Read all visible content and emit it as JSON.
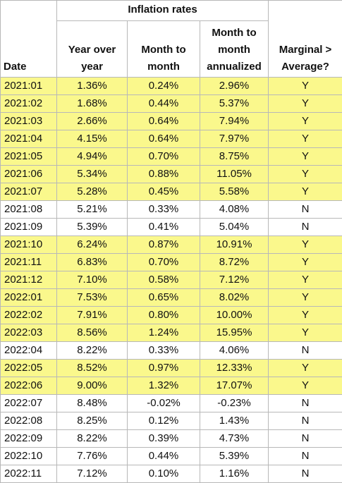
{
  "header": {
    "title": "Inflation rates"
  },
  "table": {
    "columns": [
      "Date",
      "Year over year",
      "Month to month",
      "Month to month annualized",
      "Marginal > Average?"
    ],
    "highlight_color": "#faf88c",
    "highlighted": [
      true,
      true,
      true,
      true,
      true,
      true,
      true,
      false,
      false,
      true,
      true,
      true,
      true,
      true,
      true,
      false,
      true,
      true,
      false,
      false,
      false,
      false,
      false
    ],
    "rows": [
      [
        "2021:01",
        "1.36%",
        "0.24%",
        "2.96%",
        "Y"
      ],
      [
        "2021:02",
        "1.68%",
        "0.44%",
        "5.37%",
        "Y"
      ],
      [
        "2021:03",
        "2.66%",
        "0.64%",
        "7.94%",
        "Y"
      ],
      [
        "2021:04",
        "4.15%",
        "0.64%",
        "7.97%",
        "Y"
      ],
      [
        "2021:05",
        "4.94%",
        "0.70%",
        "8.75%",
        "Y"
      ],
      [
        "2021:06",
        "5.34%",
        "0.88%",
        "11.05%",
        "Y"
      ],
      [
        "2021:07",
        "5.28%",
        "0.45%",
        "5.58%",
        "Y"
      ],
      [
        "2021:08",
        "5.21%",
        "0.33%",
        "4.08%",
        "N"
      ],
      [
        "2021:09",
        "5.39%",
        "0.41%",
        "5.04%",
        "N"
      ],
      [
        "2021:10",
        "6.24%",
        "0.87%",
        "10.91%",
        "Y"
      ],
      [
        "2021:11",
        "6.83%",
        "0.70%",
        "8.72%",
        "Y"
      ],
      [
        "2021:12",
        "7.10%",
        "0.58%",
        "7.12%",
        "Y"
      ],
      [
        "2022:01",
        "7.53%",
        "0.65%",
        "8.02%",
        "Y"
      ],
      [
        "2022:02",
        "7.91%",
        "0.80%",
        "10.00%",
        "Y"
      ],
      [
        "2022:03",
        "8.56%",
        "1.24%",
        "15.95%",
        "Y"
      ],
      [
        "2022:04",
        "8.22%",
        "0.33%",
        "4.06%",
        "N"
      ],
      [
        "2022:05",
        "8.52%",
        "0.97%",
        "12.33%",
        "Y"
      ],
      [
        "2022:06",
        "9.00%",
        "1.32%",
        "17.07%",
        "Y"
      ],
      [
        "2022:07",
        "8.48%",
        "-0.02%",
        "-0.23%",
        "N"
      ],
      [
        "2022:08",
        "8.25%",
        "0.12%",
        "1.43%",
        "N"
      ],
      [
        "2022:09",
        "8.22%",
        "0.39%",
        "4.73%",
        "N"
      ],
      [
        "2022:10",
        "7.76%",
        "0.44%",
        "5.39%",
        "N"
      ],
      [
        "2022:11",
        "7.12%",
        "0.10%",
        "1.16%",
        "N"
      ]
    ]
  }
}
